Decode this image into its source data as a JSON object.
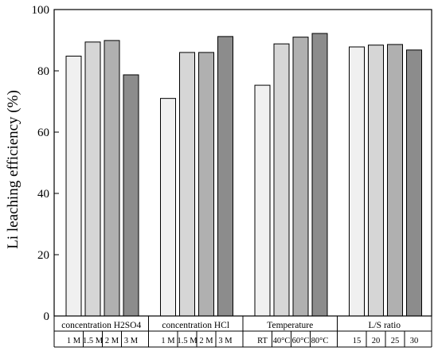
{
  "chart_data": {
    "type": "bar",
    "ylabel": "Li leaching efficiency (%)",
    "ylim": [
      0,
      100
    ],
    "yticks": [
      0,
      20,
      40,
      60,
      80,
      100
    ],
    "grid": false,
    "legend": "none",
    "groups": [
      {
        "name": "concentration H2SO4",
        "categories": [
          "1 M",
          "1.5 M",
          "2 M",
          "3 M"
        ],
        "values": [
          84.8,
          89.4,
          89.9,
          78.7
        ]
      },
      {
        "name": "concentration HCl",
        "categories": [
          "1 M",
          "1.5 M",
          "2 M",
          "3 M"
        ],
        "values": [
          71.0,
          86.0,
          86.0,
          91.2
        ]
      },
      {
        "name": "Temperature",
        "categories": [
          "RT",
          "40°C",
          "60°C",
          "80°C"
        ],
        "values": [
          75.3,
          88.8,
          91.0,
          92.2
        ]
      },
      {
        "name": "L/S ratio",
        "categories": [
          "15",
          "20",
          "25",
          "30"
        ],
        "values": [
          87.8,
          88.4,
          88.6,
          86.8
        ]
      }
    ],
    "bar_colors": [
      "#f0f0f0",
      "#d6d6d6",
      "#b0b0b0",
      "#8c8c8c"
    ]
  }
}
